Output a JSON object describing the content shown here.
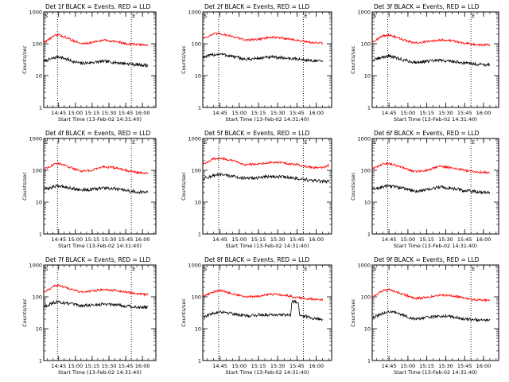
{
  "figure": {
    "x_axis_title": "Start Time (13-Feb-02 14:31:40)",
    "y_axis_title": "Counts/sec",
    "y_ticks": [
      "1",
      "10",
      "100",
      "1000"
    ],
    "x_ticks": [
      "14:45",
      "15:00",
      "15:15",
      "15:30",
      "15:45",
      "16:00"
    ],
    "marker_left": "S",
    "marker_right": "E",
    "colors": {
      "events": "#000000",
      "lld": "#ff0000"
    }
  },
  "chart_data": [
    {
      "type": "line",
      "title": "Det 1f BLACK = Events, RED = LLD",
      "xlabel": "Start Time (13-Feb-02 14:31:40)",
      "ylabel": "Counts/sec",
      "x_unit": "time (HH:MM)",
      "xlim": [
        "14:31:40",
        "16:12"
      ],
      "ylim": [
        1,
        1000
      ],
      "y_scale": "log",
      "dotted_lines_at": [
        "14:44",
        "15:50"
      ],
      "series": [
        {
          "name": "Events",
          "color": "#000000",
          "x": [
            "14:32",
            "14:40",
            "14:45",
            "14:55",
            "15:05",
            "15:15",
            "15:25",
            "15:35",
            "15:45",
            "15:55",
            "16:05"
          ],
          "values": [
            28,
            35,
            40,
            30,
            24,
            26,
            28,
            26,
            24,
            22,
            21
          ]
        },
        {
          "name": "LLD",
          "color": "#ff0000",
          "x": [
            "14:32",
            "14:40",
            "14:45",
            "14:55",
            "15:05",
            "15:15",
            "15:25",
            "15:35",
            "15:45",
            "15:55",
            "16:05"
          ],
          "values": [
            110,
            170,
            195,
            140,
            100,
            110,
            130,
            120,
            100,
            95,
            90
          ]
        }
      ]
    },
    {
      "type": "line",
      "title": "Det 2f BLACK = Events, RED = LLD",
      "xlabel": "Start Time (13-Feb-02 14:31:40)",
      "ylabel": "Counts/sec",
      "x_unit": "time (HH:MM)",
      "xlim": [
        "14:31:40",
        "16:12"
      ],
      "ylim": [
        1,
        1000
      ],
      "y_scale": "log",
      "dotted_lines_at": [
        "14:44",
        "15:50"
      ],
      "series": [
        {
          "name": "Events",
          "color": "#000000",
          "x": [
            "14:32",
            "14:40",
            "14:45",
            "14:55",
            "15:05",
            "15:15",
            "15:25",
            "15:35",
            "15:45",
            "15:55",
            "16:05"
          ],
          "values": [
            38,
            45,
            48,
            40,
            32,
            35,
            38,
            36,
            33,
            30,
            28
          ]
        },
        {
          "name": "LLD",
          "color": "#ff0000",
          "x": [
            "14:32",
            "14:40",
            "14:45",
            "14:55",
            "15:05",
            "15:15",
            "15:25",
            "15:35",
            "15:45",
            "15:55",
            "16:05"
          ],
          "values": [
            150,
            200,
            210,
            170,
            130,
            140,
            160,
            150,
            130,
            110,
            105
          ]
        }
      ]
    },
    {
      "type": "line",
      "title": "Det 3f BLACK = Events, RED = LLD",
      "xlabel": "Start Time (13-Feb-02 14:31:40)",
      "ylabel": "Counts/sec",
      "x_unit": "time (HH:MM)",
      "xlim": [
        "14:31:40",
        "16:12"
      ],
      "ylim": [
        1,
        1000
      ],
      "y_scale": "log",
      "dotted_lines_at": [
        "14:44",
        "15:50"
      ],
      "series": [
        {
          "name": "Events",
          "color": "#000000",
          "x": [
            "14:32",
            "14:40",
            "14:45",
            "14:55",
            "15:05",
            "15:15",
            "15:25",
            "15:35",
            "15:45",
            "15:55",
            "16:05"
          ],
          "values": [
            30,
            38,
            42,
            32,
            26,
            28,
            30,
            28,
            25,
            23,
            22
          ]
        },
        {
          "name": "LLD",
          "color": "#ff0000",
          "x": [
            "14:32",
            "14:40",
            "14:45",
            "14:55",
            "15:05",
            "15:15",
            "15:25",
            "15:35",
            "15:45",
            "15:55",
            "16:05"
          ],
          "values": [
            115,
            175,
            190,
            140,
            105,
            115,
            135,
            125,
            105,
            95,
            92
          ]
        }
      ]
    },
    {
      "type": "line",
      "title": "Det 4f BLACK = Events, RED = LLD",
      "xlabel": "Start Time (13-Feb-02 14:31:40)",
      "ylabel": "Counts/sec",
      "x_unit": "time (HH:MM)",
      "xlim": [
        "14:31:40",
        "16:12"
      ],
      "ylim": [
        1,
        1000
      ],
      "y_scale": "log",
      "dotted_lines_at": [
        "14:44",
        "15:50"
      ],
      "series": [
        {
          "name": "Events",
          "color": "#000000",
          "x": [
            "14:32",
            "14:40",
            "14:45",
            "14:55",
            "15:05",
            "15:15",
            "15:25",
            "15:35",
            "15:45",
            "15:55",
            "16:05"
          ],
          "values": [
            25,
            30,
            33,
            28,
            24,
            25,
            28,
            26,
            23,
            21,
            20
          ]
        },
        {
          "name": "LLD",
          "color": "#ff0000",
          "x": [
            "14:32",
            "14:40",
            "14:45",
            "14:55",
            "15:05",
            "15:15",
            "15:25",
            "15:35",
            "15:45",
            "15:55",
            "16:05"
          ],
          "values": [
            110,
            150,
            165,
            125,
            95,
            100,
            130,
            120,
            100,
            85,
            80
          ]
        }
      ]
    },
    {
      "type": "line",
      "title": "Det 5f BLACK = Events, RED = LLD",
      "xlabel": "Start Time (13-Feb-02 14:31:40)",
      "ylabel": "Counts/sec",
      "x_unit": "time (HH:MM)",
      "xlim": [
        "14:31:40",
        "16:12"
      ],
      "ylim": [
        1,
        1000
      ],
      "y_scale": "log",
      "dotted_lines_at": [
        "14:44",
        "15:50"
      ],
      "series": [
        {
          "name": "Events",
          "color": "#000000",
          "x": [
            "14:32",
            "14:40",
            "14:45",
            "14:55",
            "15:05",
            "15:15",
            "15:25",
            "15:35",
            "15:45",
            "15:55",
            "16:05",
            "16:10"
          ],
          "values": [
            55,
            68,
            72,
            65,
            55,
            58,
            65,
            62,
            55,
            48,
            45,
            44
          ]
        },
        {
          "name": "LLD",
          "color": "#ff0000",
          "x": [
            "14:32",
            "14:40",
            "14:45",
            "14:55",
            "15:05",
            "15:15",
            "15:25",
            "15:35",
            "15:45",
            "15:55",
            "16:05",
            "16:10"
          ],
          "values": [
            155,
            230,
            240,
            200,
            150,
            160,
            180,
            170,
            150,
            125,
            120,
            145
          ]
        }
      ]
    },
    {
      "type": "line",
      "title": "Det 6f BLACK = Events, RED = LLD",
      "xlabel": "Start Time (13-Feb-02 14:31:40)",
      "ylabel": "Counts/sec",
      "x_unit": "time (HH:MM)",
      "xlim": [
        "14:31:40",
        "16:12"
      ],
      "ylim": [
        1,
        1000
      ],
      "y_scale": "log",
      "dotted_lines_at": [
        "14:44",
        "15:50"
      ],
      "series": [
        {
          "name": "Events",
          "color": "#000000",
          "x": [
            "14:32",
            "14:40",
            "14:45",
            "14:55",
            "15:05",
            "15:15",
            "15:25",
            "15:35",
            "15:45",
            "15:55",
            "16:05"
          ],
          "values": [
            25,
            30,
            33,
            28,
            22,
            24,
            30,
            27,
            23,
            21,
            20
          ]
        },
        {
          "name": "LLD",
          "color": "#ff0000",
          "x": [
            "14:32",
            "14:40",
            "14:45",
            "14:55",
            "15:05",
            "15:15",
            "15:25",
            "15:35",
            "15:45",
            "15:55",
            "16:05"
          ],
          "values": [
            110,
            155,
            165,
            125,
            90,
            100,
            135,
            120,
            100,
            88,
            85
          ]
        }
      ]
    },
    {
      "type": "line",
      "title": "Det 7f BLACK = Events, RED = LLD",
      "xlabel": "Start Time (13-Feb-02 14:31:40)",
      "ylabel": "Counts/sec",
      "x_unit": "time (HH:MM)",
      "xlim": [
        "14:31:40",
        "16:12"
      ],
      "ylim": [
        1,
        1000
      ],
      "y_scale": "log",
      "dotted_lines_at": [
        "14:44",
        "15:50"
      ],
      "series": [
        {
          "name": "Events",
          "color": "#000000",
          "x": [
            "14:32",
            "14:40",
            "14:45",
            "14:55",
            "15:05",
            "15:15",
            "15:25",
            "15:35",
            "15:45",
            "15:55",
            "16:05"
          ],
          "values": [
            50,
            65,
            70,
            60,
            52,
            55,
            60,
            58,
            52,
            48,
            46
          ]
        },
        {
          "name": "LLD",
          "color": "#ff0000",
          "x": [
            "14:32",
            "14:40",
            "14:45",
            "14:55",
            "15:05",
            "15:15",
            "15:25",
            "15:35",
            "15:45",
            "15:55",
            "16:05"
          ],
          "values": [
            140,
            210,
            230,
            180,
            140,
            150,
            170,
            160,
            140,
            125,
            120
          ]
        }
      ]
    },
    {
      "type": "line",
      "title": "Det 8f BLACK = Events, RED = LLD",
      "xlabel": "Start Time (13-Feb-02 14:31:40)",
      "ylabel": "Counts/sec",
      "x_unit": "time (HH:MM)",
      "xlim": [
        "14:31:40",
        "16:12"
      ],
      "ylim": [
        1,
        1000
      ],
      "y_scale": "log",
      "dotted_lines_at": [
        "14:44",
        "15:50"
      ],
      "series": [
        {
          "name": "Events",
          "color": "#000000",
          "x": [
            "14:32",
            "14:40",
            "14:45",
            "14:55",
            "15:05",
            "15:15",
            "15:25",
            "15:35",
            "15:40",
            "15:41",
            "15:46",
            "15:47",
            "15:55",
            "16:05"
          ],
          "values": [
            24,
            30,
            35,
            30,
            25,
            27,
            28,
            27,
            26,
            70,
            70,
            28,
            22,
            20
          ]
        },
        {
          "name": "LLD",
          "color": "#ff0000",
          "x": [
            "14:32",
            "14:40",
            "14:45",
            "14:55",
            "15:05",
            "15:15",
            "15:25",
            "15:35",
            "15:45",
            "15:55",
            "16:05"
          ],
          "values": [
            105,
            145,
            160,
            125,
            100,
            105,
            120,
            115,
            95,
            85,
            80
          ]
        }
      ]
    },
    {
      "type": "line",
      "title": "Det 9f BLACK = Events, RED = LLD",
      "xlabel": "Start Time (13-Feb-02 14:31:40)",
      "ylabel": "Counts/sec",
      "x_unit": "time (HH:MM)",
      "xlim": [
        "14:31:40",
        "16:12"
      ],
      "ylim": [
        1,
        1000
      ],
      "y_scale": "log",
      "dotted_lines_at": [
        "14:44",
        "15:50"
      ],
      "series": [
        {
          "name": "Events",
          "color": "#000000",
          "x": [
            "14:32",
            "14:40",
            "14:45",
            "14:55",
            "15:05",
            "15:15",
            "15:25",
            "15:35",
            "15:45",
            "15:55",
            "16:05"
          ],
          "values": [
            22,
            30,
            35,
            28,
            20,
            22,
            25,
            24,
            20,
            19,
            18
          ]
        },
        {
          "name": "LLD",
          "color": "#ff0000",
          "x": [
            "14:32",
            "14:40",
            "14:45",
            "14:55",
            "15:05",
            "15:15",
            "15:25",
            "15:35",
            "15:45",
            "15:55",
            "16:05"
          ],
          "values": [
            100,
            155,
            170,
            125,
            90,
            95,
            115,
            110,
            90,
            80,
            78
          ]
        }
      ]
    }
  ]
}
